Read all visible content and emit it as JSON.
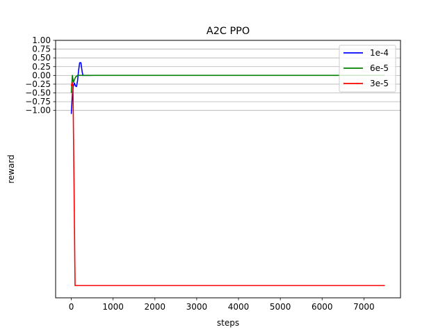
{
  "chart_data": {
    "type": "line",
    "title": "A2C PPO",
    "xlabel": "steps",
    "ylabel": "reward",
    "xlim": [
      -375,
      7875
    ],
    "ylim": [
      -6.35,
      1.0
    ],
    "x_ticks": [
      0,
      1000,
      2000,
      3000,
      4000,
      5000,
      6000,
      7000
    ],
    "x_tick_labels": [
      "0",
      "1000",
      "2000",
      "3000",
      "4000",
      "5000",
      "6000",
      "7000"
    ],
    "y_ticks": [
      1.0,
      0.75,
      0.5,
      0.25,
      0.0,
      -0.25,
      -0.5,
      -0.75,
      -1.0
    ],
    "y_tick_labels": [
      "1.00",
      "0.75",
      "0.50",
      "0.25",
      "0.00",
      "−0.25",
      "−0.50",
      "−0.75",
      "−1.00"
    ],
    "grid": "horizontal",
    "legend_position": "top-right",
    "series": [
      {
        "name": "1e-4",
        "color": "#0000ff",
        "points": [
          [
            0,
            -1.1
          ],
          [
            25,
            -0.55
          ],
          [
            50,
            -0.3
          ],
          [
            75,
            -0.22
          ],
          [
            100,
            -0.3
          ],
          [
            125,
            -0.32
          ],
          [
            150,
            -0.15
          ],
          [
            175,
            0.15
          ],
          [
            200,
            0.36
          ],
          [
            230,
            0.36
          ],
          [
            260,
            0.1
          ],
          [
            280,
            0.0
          ],
          [
            500,
            0.0
          ]
        ]
      },
      {
        "name": "6e-5",
        "color": "#008000",
        "points": [
          [
            0,
            -0.5
          ],
          [
            25,
            0.0
          ],
          [
            50,
            -0.2
          ],
          [
            100,
            -0.05
          ],
          [
            150,
            0.0
          ],
          [
            7500,
            0.0
          ]
        ]
      },
      {
        "name": "3e-5",
        "color": "#ff0000",
        "points": [
          [
            0,
            -0.3
          ],
          [
            20,
            -0.2
          ],
          [
            40,
            -0.3
          ],
          [
            60,
            -2.5
          ],
          [
            90,
            -6.0
          ],
          [
            7500,
            -6.0
          ]
        ]
      }
    ]
  }
}
